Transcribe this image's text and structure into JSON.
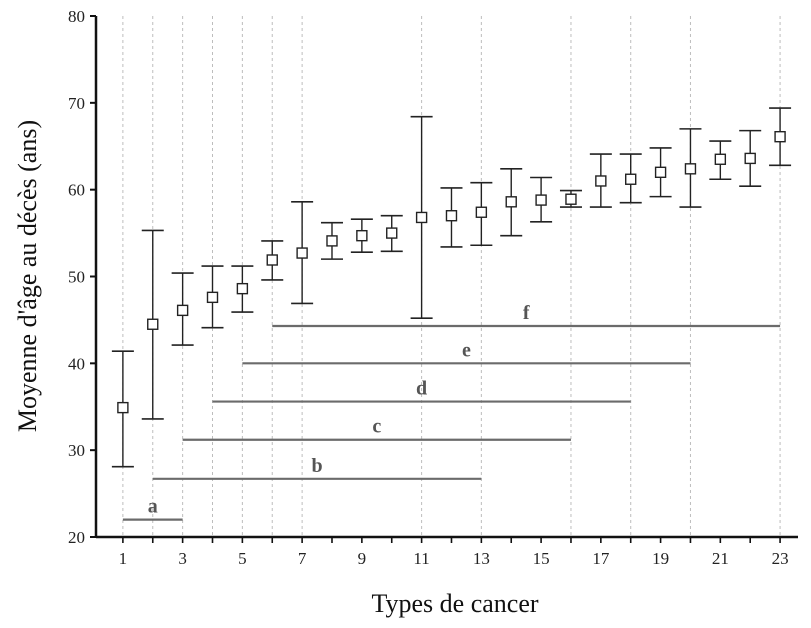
{
  "chart_data": {
    "type": "scatter",
    "xlabel": "Types de cancer",
    "ylabel": "Moyenne d'âge au décès (ans)",
    "xlim": [
      0.1,
      23.6
    ],
    "ylim": [
      20,
      80
    ],
    "x_ticks": [
      1,
      3,
      5,
      7,
      9,
      11,
      13,
      15,
      17,
      19,
      21,
      23
    ],
    "y_ticks": [
      20,
      30,
      40,
      50,
      60,
      70,
      80
    ],
    "vertical_gridlines_at": [
      1,
      2,
      3,
      4,
      5,
      6,
      7,
      11,
      13,
      16,
      18,
      20,
      23
    ],
    "series": [
      {
        "x": [
          1,
          2,
          3,
          4,
          5,
          6,
          7,
          8,
          9,
          10,
          11,
          12,
          13,
          14,
          15,
          16,
          17,
          18,
          19,
          20,
          21,
          22,
          23
        ],
        "mean": [
          34.9,
          44.5,
          46.1,
          47.6,
          48.6,
          51.9,
          52.7,
          54.1,
          54.7,
          55.0,
          56.8,
          57.0,
          57.4,
          58.6,
          58.8,
          58.9,
          61.0,
          61.2,
          62.0,
          62.4,
          63.5,
          63.6,
          66.1
        ],
        "lower": [
          28.1,
          33.6,
          42.1,
          44.1,
          45.9,
          49.6,
          46.9,
          52.0,
          52.8,
          52.9,
          45.2,
          53.4,
          53.6,
          54.7,
          56.3,
          58.0,
          58.0,
          58.5,
          59.2,
          58.0,
          61.2,
          60.4,
          62.8
        ],
        "upper": [
          41.4,
          55.3,
          50.4,
          51.2,
          51.2,
          54.1,
          58.6,
          56.2,
          56.6,
          57.0,
          68.4,
          60.2,
          60.8,
          62.4,
          61.4,
          59.9,
          64.1,
          64.1,
          64.8,
          67.0,
          65.6,
          66.8,
          69.4
        ]
      }
    ],
    "groups": [
      {
        "label": "a",
        "start": 1,
        "end": 3,
        "y": 22.0
      },
      {
        "label": "b",
        "start": 2,
        "end": 13,
        "y": 26.7
      },
      {
        "label": "c",
        "start": 3,
        "end": 16,
        "y": 31.2
      },
      {
        "label": "d",
        "start": 4,
        "end": 18,
        "y": 35.6
      },
      {
        "label": "e",
        "start": 5,
        "end": 20,
        "y": 40.0
      },
      {
        "label": "f",
        "start": 6,
        "end": 23,
        "y": 44.3
      }
    ]
  },
  "colors": {
    "axis": "#111111",
    "grid": "#bdbdbd",
    "marker": "#222222",
    "group_line": "#6b6b6b",
    "group_label": "#555555"
  }
}
